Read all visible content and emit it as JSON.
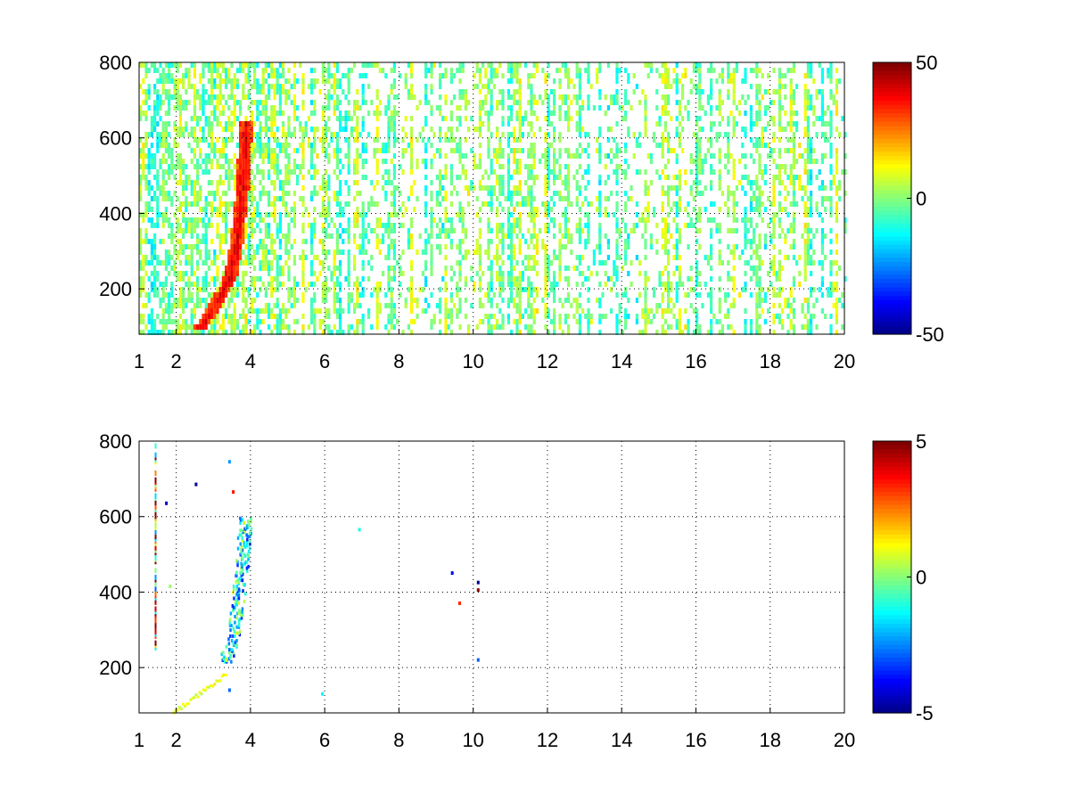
{
  "colormap": "jet",
  "chart_data": [
    {
      "type": "heatmap",
      "xlim": [
        1,
        20
      ],
      "ylim": [
        80,
        800
      ],
      "x_ticks": [
        "1",
        "2",
        "4",
        "6",
        "8",
        "10",
        "12",
        "14",
        "16",
        "18",
        "20"
      ],
      "y_ticks": [
        "200",
        "400",
        "600",
        "800"
      ],
      "grid": true,
      "colorbar": {
        "range": [
          -50,
          50
        ],
        "ticks": [
          "50",
          "0",
          "-50"
        ]
      },
      "features": [
        {
          "shape": "curved ridge",
          "x": [
            2.6,
            3.0,
            3.4,
            3.6,
            3.75,
            3.85
          ],
          "y": [
            100,
            160,
            230,
            330,
            470,
            650
          ],
          "value": 40
        },
        {
          "shape": "broadband vertical stripes",
          "x_range": [
            1,
            20
          ],
          "y_range": [
            80,
            800
          ],
          "value_range": [
            -15,
            10
          ]
        }
      ]
    },
    {
      "type": "heatmap",
      "xlim": [
        1,
        20
      ],
      "ylim": [
        80,
        800
      ],
      "x_ticks": [
        "1",
        "2",
        "4",
        "6",
        "8",
        "10",
        "12",
        "14",
        "16",
        "18",
        "20"
      ],
      "y_ticks": [
        "200",
        "400",
        "600",
        "800"
      ],
      "grid": true,
      "colorbar": {
        "range": [
          -5,
          5
        ],
        "ticks": [
          "5",
          "0",
          "-5"
        ]
      },
      "features": [
        {
          "shape": "curved ridge",
          "x": [
            3.3,
            3.5,
            3.65,
            3.75,
            3.85
          ],
          "y": [
            220,
            280,
            380,
            480,
            600
          ],
          "value": -3
        },
        {
          "shape": "sparse points",
          "x_range": [
            1.3,
            10.2
          ],
          "y_range": [
            80,
            800
          ],
          "value_range": [
            -5,
            5
          ]
        }
      ]
    }
  ]
}
